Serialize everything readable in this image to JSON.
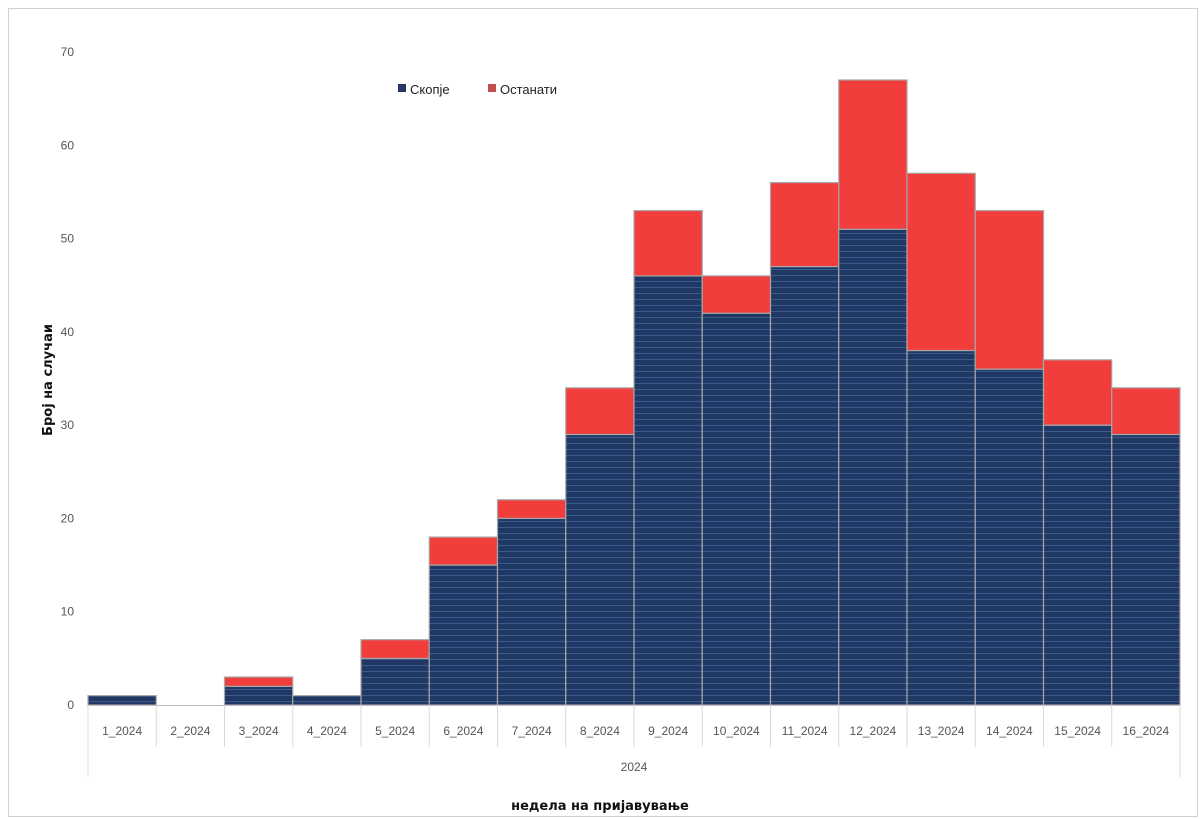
{
  "chart_data": {
    "type": "bar",
    "stacked": true,
    "categories": [
      "1_2024",
      "2_2024",
      "3_2024",
      "4_2024",
      "5_2024",
      "6_2024",
      "7_2024",
      "8_2024",
      "9_2024",
      "10_2024",
      "11_2024",
      "12_2024",
      "13_2024",
      "14_2024",
      "15_2024",
      "16_2024"
    ],
    "group_label": "2024",
    "series": [
      {
        "name": "Скопје",
        "color": "#1f3864",
        "values": [
          1,
          0,
          2,
          1,
          5,
          15,
          20,
          29,
          46,
          42,
          47,
          51,
          38,
          36,
          30,
          29
        ]
      },
      {
        "name": "Останати",
        "color": "#f23d3d",
        "values": [
          0,
          0,
          1,
          0,
          2,
          3,
          2,
          5,
          7,
          4,
          9,
          16,
          19,
          17,
          7,
          5
        ]
      }
    ],
    "xlabel": "недела на пријавување",
    "ylabel": "Број на случаи",
    "ylim": [
      0,
      70
    ],
    "yticks": [
      0,
      10,
      20,
      30,
      40,
      50,
      60,
      70
    ],
    "grid": false,
    "legend": "top-center"
  }
}
